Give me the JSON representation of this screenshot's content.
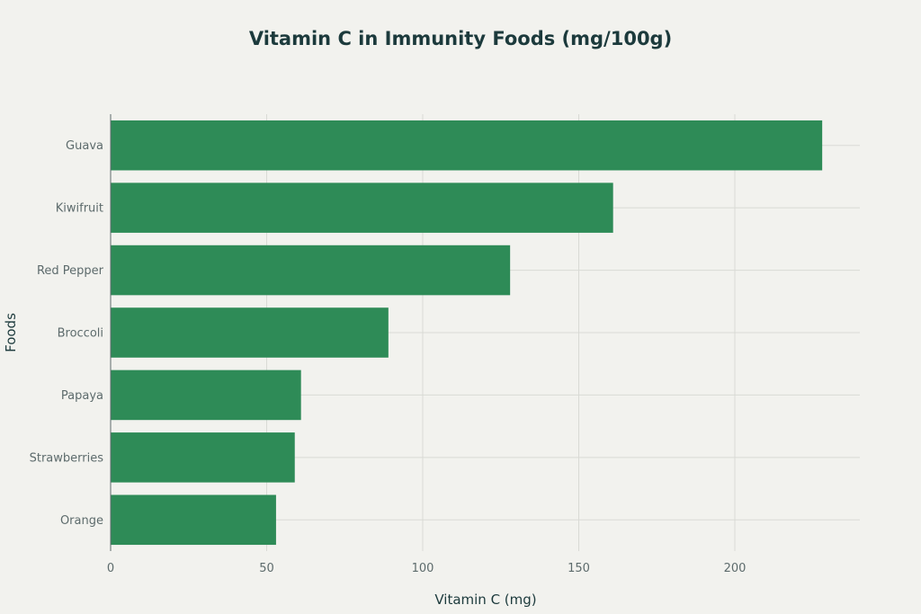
{
  "chart_data": {
    "type": "bar",
    "orientation": "horizontal",
    "title": "Vitamin C in Immunity Foods (mg/100g)",
    "xlabel": "Vitamin C (mg)",
    "ylabel": "Foods",
    "categories": [
      "Guava",
      "Kiwifruit",
      "Red Pepper",
      "Broccoli",
      "Papaya",
      "Strawberries",
      "Orange"
    ],
    "values": [
      228,
      161,
      128,
      89,
      61,
      59,
      53
    ],
    "xlim": [
      0,
      240
    ],
    "xticks": [
      0,
      50,
      100,
      150,
      200
    ],
    "xtick_labels": [
      "0",
      "50",
      "100",
      "150",
      "200"
    ],
    "grid": true,
    "colors": {
      "bar": "#2e8b57",
      "background": "#f2f2ee",
      "grid": "#d9dad5"
    }
  }
}
